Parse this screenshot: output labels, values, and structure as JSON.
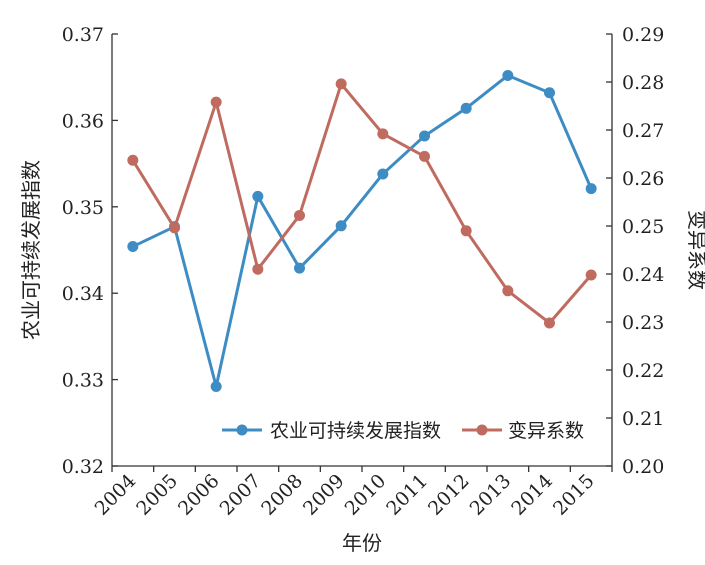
{
  "chart_data": {
    "type": "line",
    "xlabel": "年份",
    "categories": [
      "2004",
      "2005",
      "2006",
      "2007",
      "2008",
      "2009",
      "2010",
      "2011",
      "2012",
      "2013",
      "2014",
      "2015"
    ],
    "y_left": {
      "label": "农业可持续发展指数",
      "range": [
        0.32,
        0.37
      ],
      "ticks": [
        "0.32",
        "0.33",
        "0.34",
        "0.35",
        "0.36",
        "0.37"
      ]
    },
    "y_right": {
      "label": "变异系数",
      "range": [
        0.2,
        0.29
      ],
      "ticks": [
        "0.20",
        "0.21",
        "0.22",
        "0.23",
        "0.24",
        "0.25",
        "0.26",
        "0.27",
        "0.28",
        "0.29"
      ]
    },
    "grid": false,
    "legend_position": "bottom-right",
    "series": [
      {
        "name": "农业可持续发展指数",
        "axis": "left",
        "color": "#3d8cc4",
        "values": [
          0.3454,
          0.3477,
          0.3292,
          0.3512,
          0.3429,
          0.3478,
          0.3538,
          0.3582,
          0.3614,
          0.3652,
          0.3632,
          0.3521
        ]
      },
      {
        "name": "变异系数",
        "axis": "right",
        "color": "#c06b60",
        "values": [
          0.2637,
          0.2496,
          0.2758,
          0.241,
          0.2522,
          0.2796,
          0.2692,
          0.2645,
          0.249,
          0.2365,
          0.2298,
          0.2398
        ]
      }
    ]
  }
}
